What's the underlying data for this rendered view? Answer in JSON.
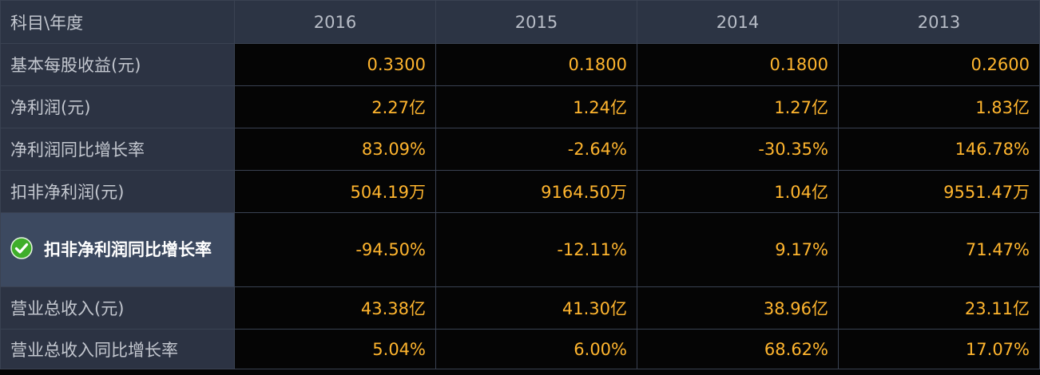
{
  "table": {
    "header": [
      "科目\\年度",
      "2016",
      "2015",
      "2014",
      "2013"
    ],
    "rows": [
      {
        "label": "基本每股收益(元)",
        "values": [
          "0.3300",
          "0.1800",
          "0.1800",
          "0.2600"
        ]
      },
      {
        "label": "净利润(元)",
        "values": [
          "2.27亿",
          "1.24亿",
          "1.27亿",
          "1.83亿"
        ]
      },
      {
        "label": "净利润同比增长率",
        "values": [
          "83.09%",
          "-2.64%",
          "-30.35%",
          "146.78%"
        ]
      },
      {
        "label": "扣非净利润(元)",
        "values": [
          "504.19万",
          "9164.50万",
          "1.04亿",
          "9551.47万"
        ]
      },
      {
        "label": "扣非净利润同比增长率",
        "values": [
          "-94.50%",
          "-12.11%",
          "9.17%",
          "71.47%"
        ]
      },
      {
        "label": "营业总收入(元)",
        "values": [
          "43.38亿",
          "41.30亿",
          "38.96亿",
          "23.11亿"
        ]
      },
      {
        "label": "营业总收入同比增长率",
        "values": [
          "5.04%",
          "6.00%",
          "68.62%",
          "17.07%"
        ]
      }
    ]
  }
}
